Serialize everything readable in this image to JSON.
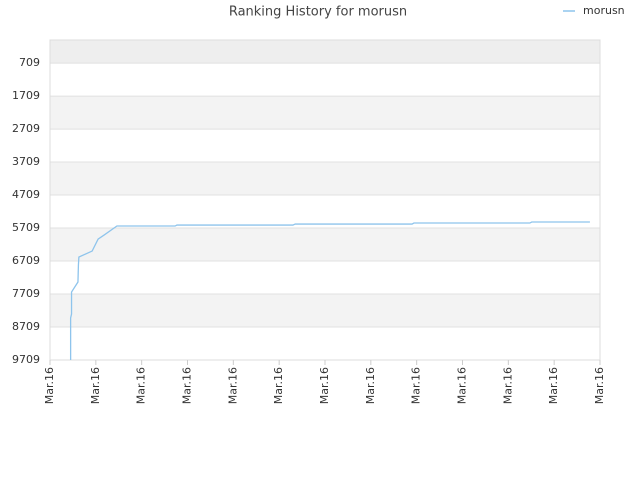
{
  "chart_data": {
    "type": "line",
    "title": "Ranking History for morusn",
    "series": [
      {
        "name": "morusn",
        "color": "#8ec4ec",
        "x": [
          0.45,
          0.45,
          0.47,
          0.47,
          0.61,
          0.62,
          0.63,
          0.92,
          1.05,
          1.18,
          1.46,
          2.73,
          2.77,
          5.3,
          5.35,
          7.9,
          7.94,
          10.47,
          10.51,
          11.78
        ],
        "values": [
          9709,
          8436,
          8315,
          7648,
          7345,
          6830,
          6588,
          6406,
          6042,
          5921,
          5648,
          5648,
          5618,
          5618,
          5588,
          5588,
          5557,
          5557,
          5527,
          5527
        ]
      }
    ],
    "ylim": [
      9709,
      9
    ],
    "yticks": [
      709,
      1709,
      2709,
      3709,
      4709,
      5709,
      6709,
      7709,
      8709,
      9709
    ],
    "xlim": [
      0,
      12
    ],
    "xticks": [
      {
        "value": 0,
        "label": "Mar.16"
      },
      {
        "value": 1,
        "label": "Mar.16"
      },
      {
        "value": 2,
        "label": "Mar.16"
      },
      {
        "value": 3,
        "label": "Mar.16"
      },
      {
        "value": 4,
        "label": "Mar.16"
      },
      {
        "value": 5,
        "label": "Mar.16"
      },
      {
        "value": 6,
        "label": "Mar.16"
      },
      {
        "value": 7,
        "label": "Mar.16"
      },
      {
        "value": 8,
        "label": "Mar.16"
      },
      {
        "value": 9,
        "label": "Mar.16"
      },
      {
        "value": 10,
        "label": "Mar.16"
      },
      {
        "value": 11,
        "label": "Mar.16"
      },
      {
        "value": 12,
        "label": "Mar.16"
      }
    ],
    "grid": true,
    "legend": "top-right"
  }
}
